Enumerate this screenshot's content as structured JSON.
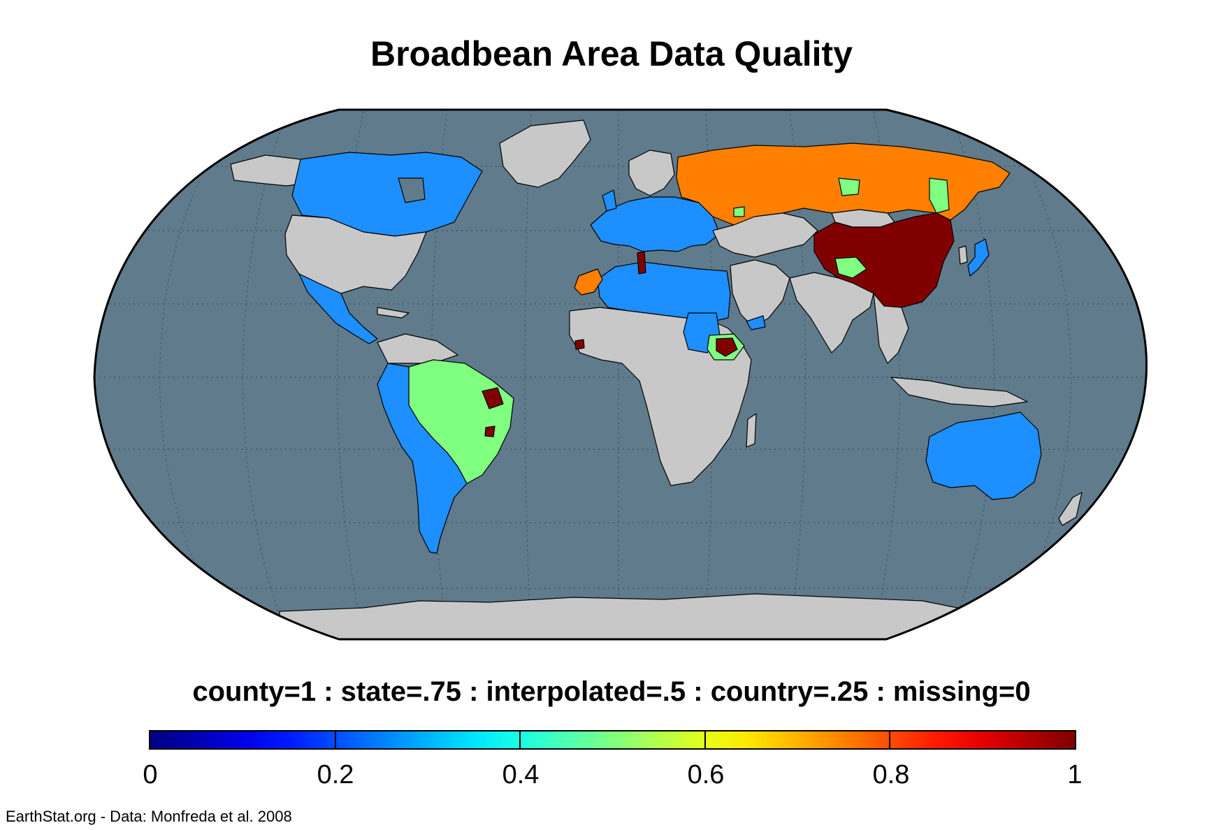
{
  "title": "Broadbean Area Data Quality",
  "legend": {
    "caption": "county=1 : state=.75 : interpolated=.5 : country=.25 : missing=0",
    "ticks": [
      "0",
      "0.2",
      "0.4",
      "0.6",
      "0.8",
      "1"
    ],
    "range": [
      0,
      1
    ],
    "colormap": "jet"
  },
  "credit": "EarthStat.org - Data: Monfreda et al. 2008",
  "colors": {
    "ocean": "#607b8b",
    "missing_land": "#c8c8c8",
    "country_level": "#1e8fff",
    "interpolated": "#80ff80",
    "state_level": "#ff8000",
    "county_level": "#800000"
  },
  "regions": [
    {
      "name": "Canada",
      "quality": 0.25
    },
    {
      "name": "Mexico and Central America",
      "quality": 0.25
    },
    {
      "name": "Europe",
      "quality": 0.25
    },
    {
      "name": "North Africa",
      "quality": 0.25
    },
    {
      "name": "Sudan",
      "quality": 0.25
    },
    {
      "name": "Yemen",
      "quality": 0.25
    },
    {
      "name": "Japan",
      "quality": 0.25
    },
    {
      "name": "Australia",
      "quality": 0.25
    },
    {
      "name": "South America (west and south)",
      "quality": 0.25
    },
    {
      "name": "Russia",
      "quality": 0.75
    },
    {
      "name": "Morocco",
      "quality": 0.75
    },
    {
      "name": "Brazil",
      "quality": 0.5
    },
    {
      "name": "Ethiopia",
      "quality": 1
    },
    {
      "name": "China",
      "quality": 1
    },
    {
      "name": "Tunisia",
      "quality": 1
    },
    {
      "name": "Sierra Leone",
      "quality": 1
    },
    {
      "name": "United States",
      "quality": 0
    },
    {
      "name": "Greenland",
      "quality": 0
    },
    {
      "name": "Sub-Saharan Africa",
      "quality": 0
    },
    {
      "name": "South and Southeast Asia",
      "quality": 0
    },
    {
      "name": "Antarctica",
      "quality": 0
    }
  ]
}
